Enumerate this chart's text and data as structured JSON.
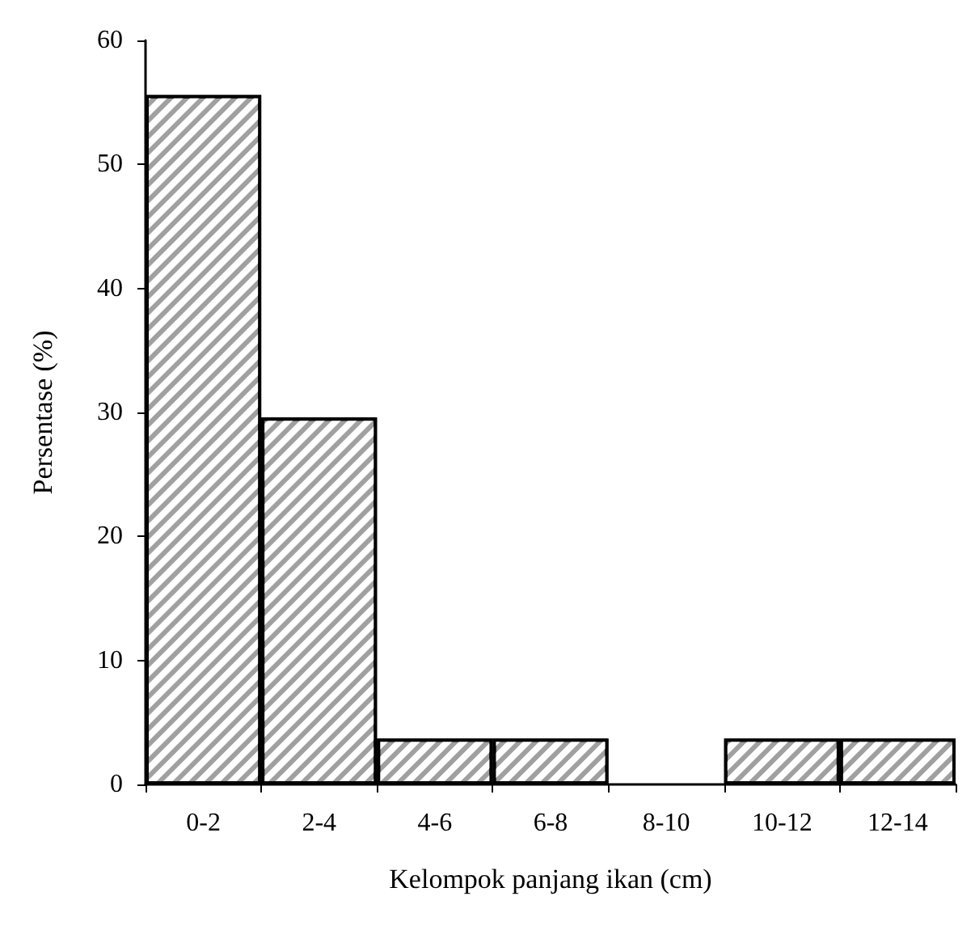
{
  "chart_data": {
    "type": "bar",
    "xlabel": "Kelompok panjang ikan (cm)",
    "ylabel": "Persentase (%)",
    "categories": [
      "0-2",
      "2-4",
      "4-6",
      "6-8",
      "8-10",
      "10-12",
      "12-14"
    ],
    "values": [
      55.6,
      29.6,
      3.7,
      3.7,
      0,
      3.7,
      3.7
    ],
    "color": "#a0a0a0",
    "ylim": [
      0,
      60
    ],
    "yticks": [
      0,
      10,
      20,
      30,
      40,
      50,
      60
    ],
    "grid": false
  }
}
